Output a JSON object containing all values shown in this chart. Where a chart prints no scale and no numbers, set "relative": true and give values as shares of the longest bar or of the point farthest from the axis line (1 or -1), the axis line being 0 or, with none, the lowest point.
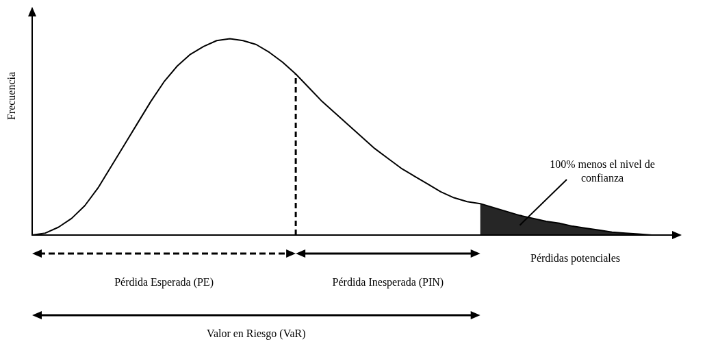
{
  "chart_data": {
    "type": "line",
    "relative": true,
    "xlabel": "Pérdidas potenciales",
    "ylabel": "Frecuencia",
    "marker": "none",
    "grid": false,
    "categories": [
      null,
      null,
      null,
      null,
      null,
      null,
      null,
      null,
      null,
      null,
      null,
      null,
      null,
      null,
      null,
      null,
      null,
      null,
      null,
      null,
      null,
      null,
      null,
      null,
      null,
      null,
      null,
      null,
      null,
      null,
      null,
      null,
      null,
      null,
      null,
      null,
      null,
      null,
      null,
      null,
      null,
      null,
      null,
      null,
      null,
      null,
      null,
      null
    ],
    "series": [
      {
        "color": "#000000",
        "values": [
          0,
          0.01,
          0.04,
          0.085,
          0.15,
          0.24,
          0.35,
          0.46,
          0.57,
          0.68,
          0.78,
          0.86,
          0.92,
          0.96,
          0.99,
          1,
          0.99,
          0.97,
          0.93,
          0.88,
          0.82,
          0.75,
          0.68,
          0.62,
          0.56,
          0.5,
          0.44,
          0.39,
          0.34,
          0.3,
          0.26,
          0.22,
          0.19,
          0.17,
          0.16,
          0.14,
          0.12,
          0.1,
          0.085,
          0.07,
          0.06,
          0.045,
          0.035,
          0.025,
          0.015,
          0.01,
          0.005,
          0
        ]
      },
      {
        "type": "area",
        "color": "#000000",
        "values": [
          null,
          null,
          null,
          null,
          null,
          null,
          null,
          null,
          null,
          null,
          null,
          null,
          null,
          null,
          null,
          null,
          null,
          null,
          null,
          null,
          null,
          null,
          null,
          null,
          null,
          null,
          null,
          null,
          null,
          null,
          null,
          null,
          null,
          null,
          0.16,
          0.14,
          0.12,
          0.1,
          0.085,
          0.07,
          0.06,
          0.045,
          0.035,
          0.025,
          0.015,
          0.01,
          0.005,
          0
        ]
      }
    ],
    "annotations": [
      "Pérdida Esperada (PE)",
      "Pérdida Inesperada (PIN)",
      "Valor en Riesgo (VaR)",
      "100% menos el nivel de confianza"
    ]
  }
}
